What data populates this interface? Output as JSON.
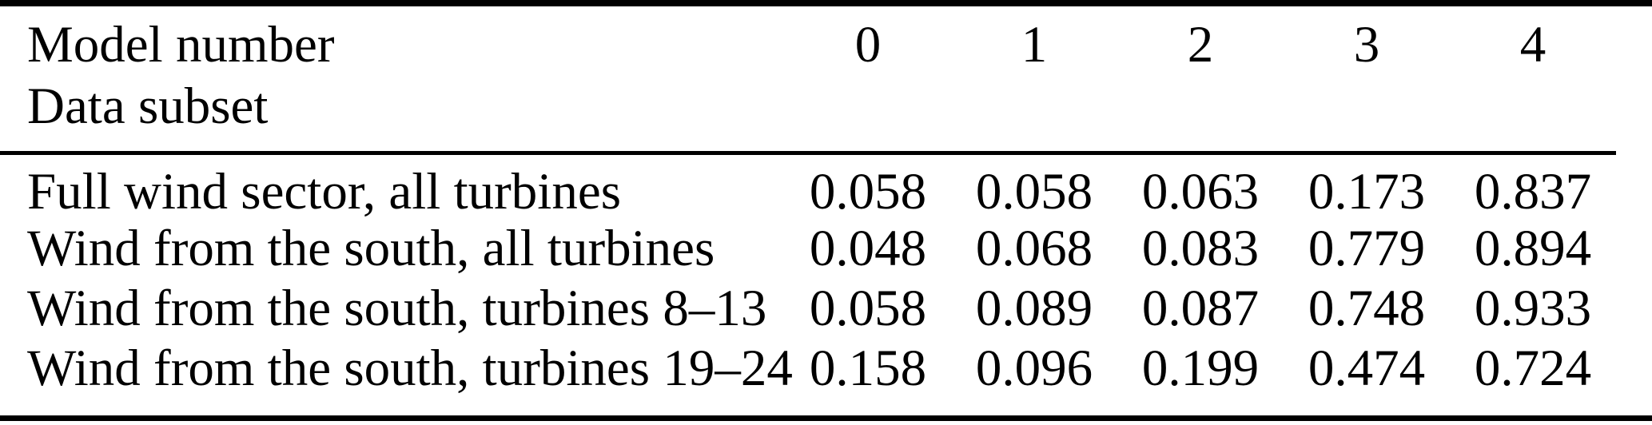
{
  "colors": {
    "background": "#ffffff",
    "text": "#000000",
    "rule": "#000000"
  },
  "table": {
    "columns_group_title": "Model number",
    "index_title": "Data subset",
    "column_headers": [
      "0",
      "1",
      "2",
      "3",
      "4"
    ],
    "rows": [
      {
        "label": "Full wind sector, all turbines",
        "values": [
          "0.058",
          "0.058",
          "0.063",
          "0.173",
          "0.837"
        ]
      },
      {
        "label": "Wind from the south, all turbines",
        "values": [
          "0.048",
          "0.068",
          "0.083",
          "0.779",
          "0.894"
        ]
      },
      {
        "label": "Wind from the south, turbines 8–13",
        "values": [
          "0.058",
          "0.089",
          "0.087",
          "0.748",
          "0.933"
        ]
      },
      {
        "label": "Wind from the south, turbines 19–24",
        "values": [
          "0.158",
          "0.096",
          "0.199",
          "0.474",
          "0.724"
        ]
      }
    ]
  }
}
